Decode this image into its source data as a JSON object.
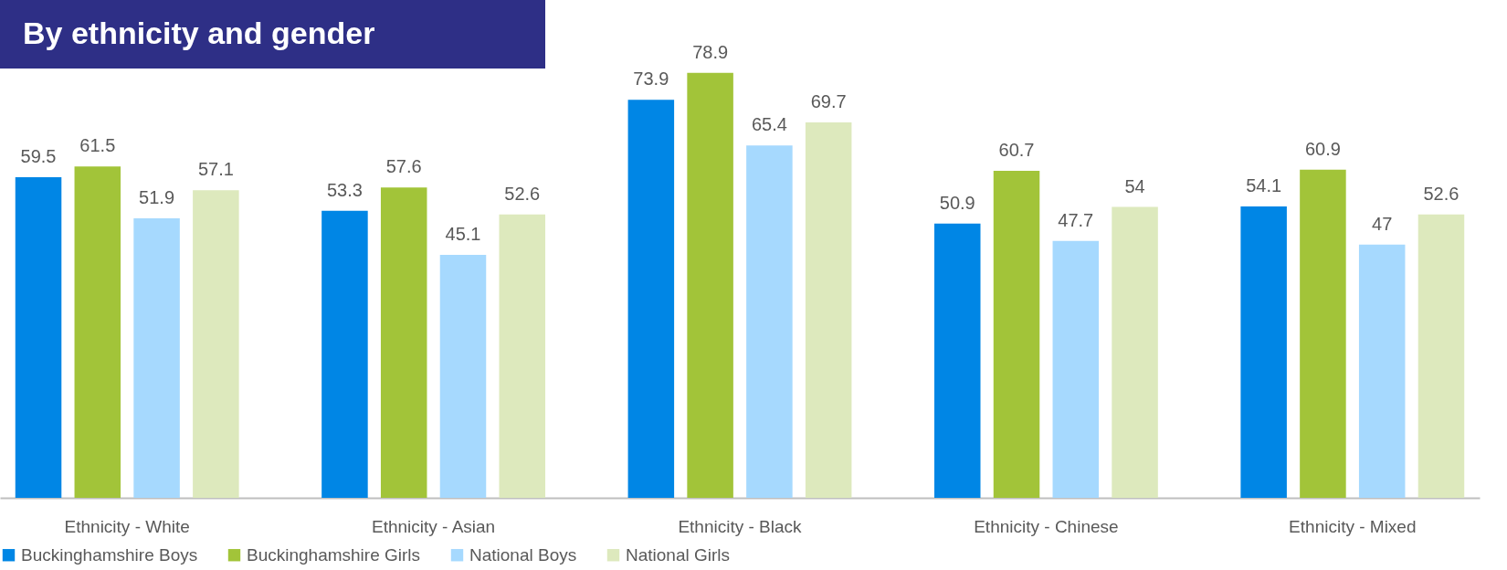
{
  "chart_data": {
    "type": "bar",
    "title": "By ethnicity and gender",
    "categories": [
      "Ethnicity - White",
      "Ethnicity - Asian",
      "Ethnicity - Black",
      "Ethnicity - Chinese",
      "Ethnicity - Mixed"
    ],
    "series": [
      {
        "name": "Buckinghamshire Boys",
        "color": "#0086e5",
        "values": [
          59.5,
          53.3,
          73.9,
          50.9,
          54.1
        ]
      },
      {
        "name": "Buckinghamshire Girls",
        "color": "#a2c439",
        "values": [
          61.5,
          57.6,
          78.9,
          60.7,
          60.9
        ]
      },
      {
        "name": "National Boys",
        "color": "#a6d9fe",
        "values": [
          51.9,
          45.1,
          65.4,
          47.7,
          47
        ]
      },
      {
        "name": "National Girls",
        "color": "#dde9bd",
        "values": [
          57.1,
          52.6,
          69.7,
          54,
          52.6
        ]
      }
    ],
    "data_labels": true,
    "legend": "bottom"
  }
}
